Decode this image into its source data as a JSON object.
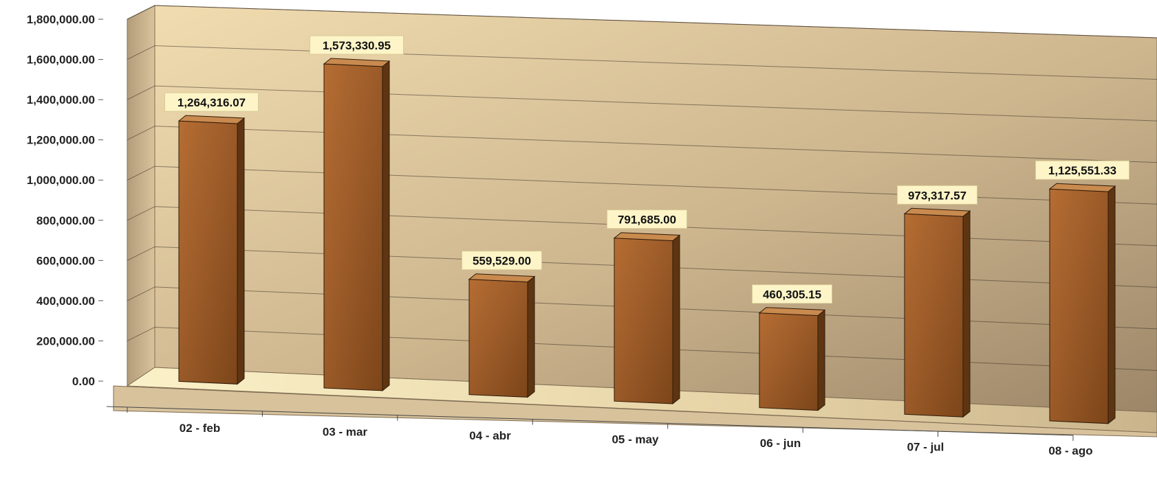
{
  "chart_data": {
    "type": "bar",
    "style": "3d-column",
    "categories": [
      "02 - feb",
      "03 - mar",
      "04 - abr",
      "05 - may",
      "06 - jun",
      "07 - jul",
      "08 - ago"
    ],
    "values": [
      1264316.07,
      1573330.95,
      559529.0,
      791685.0,
      460305.15,
      973317.57,
      1125551.33
    ],
    "data_labels": [
      "1,264,316.07",
      "1,573,330.95",
      "559,529.00",
      "791,685.00",
      "460,305.15",
      "973,317.57",
      "1,125,551.33"
    ],
    "ylim": [
      0,
      1800000
    ],
    "yticks": [
      0,
      200000,
      400000,
      600000,
      800000,
      1000000,
      1200000,
      1400000,
      1600000,
      1800000
    ],
    "ytick_labels": [
      "0.00",
      "200,000.00",
      "400,000.00",
      "600,000.00",
      "800,000.00",
      "1,000,000.00",
      "1,200,000.00",
      "1,400,000.00",
      "1,600,000.00",
      "1,800,000.00"
    ],
    "grid": true,
    "legend": "none",
    "title": "",
    "xlabel": "",
    "ylabel": ""
  },
  "colors": {
    "bar_front": "#9a5a28",
    "bar_side": "#5e3512",
    "bar_top": "#c98a4f",
    "wall_light": "#f1dcb0",
    "wall_dark": "#a99272",
    "label_bg": "#fdf5c8"
  }
}
